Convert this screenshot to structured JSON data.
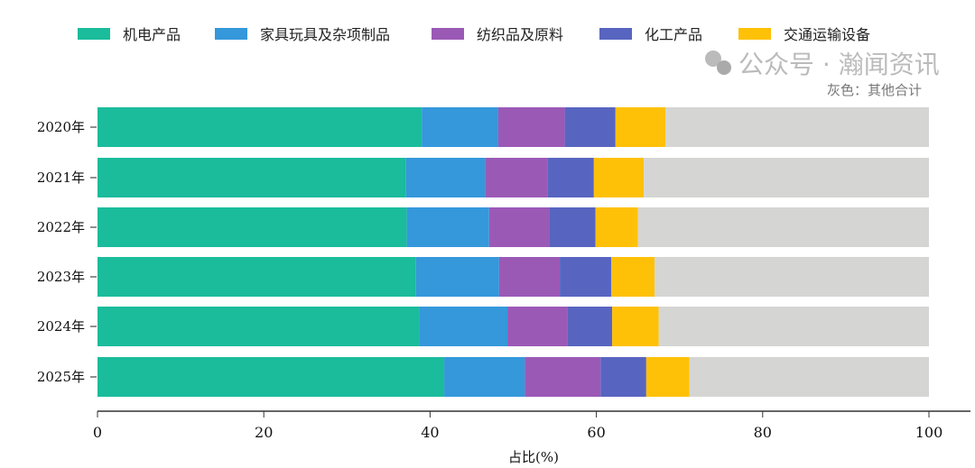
{
  "chart_data": {
    "type": "bar",
    "orientation": "horizontal",
    "stacked": true,
    "categories": [
      "2020年",
      "2021年",
      "2022年",
      "2023年",
      "2024年",
      "2025年"
    ],
    "series": [
      {
        "name": "机电产品",
        "color": "#1abc9c",
        "values": [
          39.0,
          37.1,
          37.2,
          38.3,
          38.7,
          41.7
        ]
      },
      {
        "name": "家具玩具及杂项制品",
        "color": "#3498db",
        "values": [
          9.2,
          9.5,
          9.9,
          10.0,
          10.6,
          9.7
        ]
      },
      {
        "name": "纺织品及原料",
        "color": "#9b59b6",
        "values": [
          8.0,
          7.5,
          7.2,
          7.3,
          7.2,
          9.1
        ]
      },
      {
        "name": "化工产品",
        "color": "#5865c0",
        "values": [
          6.1,
          5.6,
          5.6,
          6.2,
          5.4,
          5.5
        ]
      },
      {
        "name": "交通运输设备",
        "color": "#ffc107",
        "values": [
          6.0,
          6.0,
          5.1,
          5.2,
          5.6,
          5.2
        ]
      },
      {
        "name": "其他合计",
        "color": "#d5d5d3",
        "values": [
          31.7,
          34.3,
          35.0,
          33.0,
          32.5,
          28.8
        ],
        "show_in_legend": false
      }
    ],
    "xlabel": "占比(%)",
    "ylabel": "",
    "xlim": [
      0,
      100
    ],
    "xticks": [
      0,
      20,
      40,
      60,
      80,
      100
    ],
    "legend_position": "top",
    "annotation": "灰色：其他合计",
    "watermark": "公众号 · 瀚闻资讯"
  }
}
